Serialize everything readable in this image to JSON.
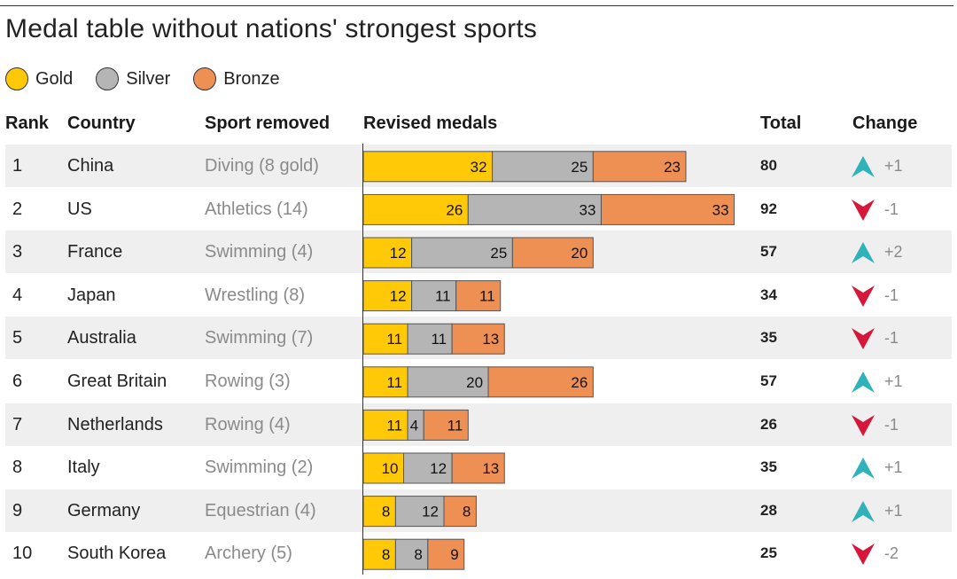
{
  "chart_data": {
    "type": "bar",
    "title": "Medal table without nations' strongest sports",
    "legend": [
      {
        "name": "Gold",
        "color": "#ffc908"
      },
      {
        "name": "Silver",
        "color": "#b5b5b5"
      },
      {
        "name": "Bronze",
        "color": "#ee8f53"
      }
    ],
    "columns": {
      "rank": "Rank",
      "country": "Country",
      "sport": "Sport removed",
      "medals": "Revised medals",
      "total": "Total",
      "change": "Change"
    },
    "rows": [
      {
        "rank": "1",
        "country": "China",
        "sport": "Diving (8 gold)",
        "gold": 32,
        "silver": 25,
        "bronze": 23,
        "total": "80",
        "change": "+1",
        "direction": "up"
      },
      {
        "rank": "2",
        "country": "US",
        "sport": "Athletics (14)",
        "gold": 26,
        "silver": 33,
        "bronze": 33,
        "total": "92",
        "change": "-1",
        "direction": "down"
      },
      {
        "rank": "3",
        "country": "France",
        "sport": "Swimming (4)",
        "gold": 12,
        "silver": 25,
        "bronze": 20,
        "total": "57",
        "change": "+2",
        "direction": "up"
      },
      {
        "rank": "4",
        "country": "Japan",
        "sport": "Wrestling (8)",
        "gold": 12,
        "silver": 11,
        "bronze": 11,
        "total": "34",
        "change": "-1",
        "direction": "down"
      },
      {
        "rank": "5",
        "country": "Australia",
        "sport": "Swimming (7)",
        "gold": 11,
        "silver": 11,
        "bronze": 13,
        "total": "35",
        "change": "-1",
        "direction": "down"
      },
      {
        "rank": "6",
        "country": "Great Britain",
        "sport": "Rowing (3)",
        "gold": 11,
        "silver": 20,
        "bronze": 26,
        "total": "57",
        "change": "+1",
        "direction": "up"
      },
      {
        "rank": "7",
        "country": "Netherlands",
        "sport": "Rowing (4)",
        "gold": 11,
        "silver": 4,
        "bronze": 11,
        "total": "26",
        "change": "-1",
        "direction": "down"
      },
      {
        "rank": "8",
        "country": "Italy",
        "sport": "Swimming (2)",
        "gold": 10,
        "silver": 12,
        "bronze": 13,
        "total": "35",
        "change": "+1",
        "direction": "up"
      },
      {
        "rank": "9",
        "country": "Germany",
        "sport": "Equestrian (4)",
        "gold": 8,
        "silver": 12,
        "bronze": 8,
        "total": "28",
        "change": "+1",
        "direction": "up"
      },
      {
        "rank": "10",
        "country": "South Korea",
        "sport": "Archery (5)",
        "gold": 8,
        "silver": 8,
        "bronze": 9,
        "total": "25",
        "change": "-2",
        "direction": "down"
      }
    ],
    "colors": {
      "up": "#2fb3b8",
      "down": "#d6163a",
      "row_shade": "#efefef"
    }
  }
}
